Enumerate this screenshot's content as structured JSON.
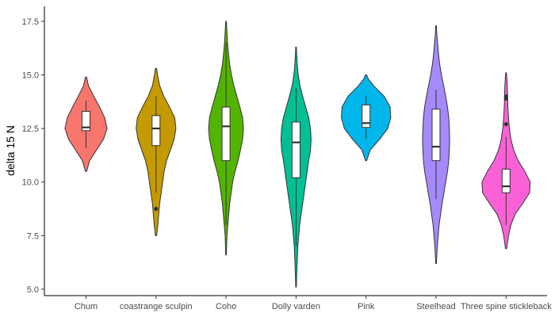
{
  "chart_data": {
    "type": "violin",
    "ylabel": "delta 15 N",
    "xlabel": "",
    "ylim": [
      4.7,
      18.2
    ],
    "yticks": [
      5.0,
      7.5,
      10.0,
      12.5,
      15.0,
      17.5
    ],
    "ytick_labels": [
      "5.0",
      "7.5",
      "10.0",
      "12.5",
      "15.0",
      "17.5"
    ],
    "grid": false,
    "legend": "none",
    "categories": [
      "Chum",
      "coastrange sculpin",
      "Coho",
      "Dolly varden",
      "Pink",
      "Steelhead",
      "Three spine stickleback"
    ],
    "series": [
      {
        "color": "#F8766D",
        "density": [
          [
            10.5,
            0.02
          ],
          [
            11.0,
            0.12
          ],
          [
            11.5,
            0.35
          ],
          [
            12.0,
            0.58
          ],
          [
            12.5,
            0.7
          ],
          [
            13.0,
            0.62
          ],
          [
            13.5,
            0.45
          ],
          [
            14.0,
            0.26
          ],
          [
            14.5,
            0.08
          ],
          [
            14.9,
            0.02
          ]
        ],
        "box": {
          "min": 11.6,
          "q1": 12.4,
          "median": 12.55,
          "q3": 13.3,
          "max": 13.8
        },
        "outliers": []
      },
      {
        "color": "#C49A00",
        "density": [
          [
            7.5,
            0.02
          ],
          [
            8.0,
            0.06
          ],
          [
            8.5,
            0.09
          ],
          [
            9.0,
            0.12
          ],
          [
            9.5,
            0.17
          ],
          [
            10.0,
            0.22
          ],
          [
            10.5,
            0.27
          ],
          [
            11.0,
            0.35
          ],
          [
            11.5,
            0.48
          ],
          [
            12.0,
            0.6
          ],
          [
            12.5,
            0.66
          ],
          [
            13.0,
            0.62
          ],
          [
            13.5,
            0.45
          ],
          [
            14.0,
            0.26
          ],
          [
            14.5,
            0.12
          ],
          [
            15.0,
            0.05
          ],
          [
            15.3,
            0.02
          ]
        ],
        "box": {
          "min": 9.5,
          "q1": 11.7,
          "median": 12.5,
          "q3": 13.1,
          "max": 14.0
        },
        "outliers": [
          8.75
        ]
      },
      {
        "color": "#53B400",
        "density": [
          [
            6.6,
            0.01
          ],
          [
            7.5,
            0.03
          ],
          [
            8.0,
            0.06
          ],
          [
            9.0,
            0.12
          ],
          [
            10.0,
            0.22
          ],
          [
            10.5,
            0.3
          ],
          [
            11.0,
            0.4
          ],
          [
            11.5,
            0.48
          ],
          [
            12.0,
            0.55
          ],
          [
            12.5,
            0.58
          ],
          [
            13.0,
            0.55
          ],
          [
            13.5,
            0.46
          ],
          [
            14.0,
            0.36
          ],
          [
            14.5,
            0.26
          ],
          [
            15.0,
            0.18
          ],
          [
            15.5,
            0.12
          ],
          [
            16.0,
            0.08
          ],
          [
            16.5,
            0.05
          ],
          [
            17.0,
            0.03
          ],
          [
            17.5,
            0.01
          ]
        ],
        "box": {
          "min": 8.0,
          "q1": 11.0,
          "median": 12.6,
          "q3": 13.5,
          "max": 16.5
        },
        "outliers": []
      },
      {
        "color": "#00C094",
        "density": [
          [
            5.1,
            0.01
          ],
          [
            6.0,
            0.03
          ],
          [
            7.0,
            0.06
          ],
          [
            8.0,
            0.12
          ],
          [
            9.0,
            0.22
          ],
          [
            10.0,
            0.32
          ],
          [
            11.0,
            0.42
          ],
          [
            11.5,
            0.48
          ],
          [
            12.0,
            0.5
          ],
          [
            12.5,
            0.48
          ],
          [
            13.0,
            0.42
          ],
          [
            13.5,
            0.32
          ],
          [
            14.0,
            0.22
          ],
          [
            14.5,
            0.13
          ],
          [
            15.0,
            0.07
          ],
          [
            15.5,
            0.04
          ],
          [
            16.0,
            0.02
          ],
          [
            16.3,
            0.01
          ]
        ],
        "box": {
          "min": 7.0,
          "q1": 10.2,
          "median": 11.85,
          "q3": 12.8,
          "max": 14.4
        },
        "outliers": []
      },
      {
        "color": "#00B6EB",
        "density": [
          [
            11.0,
            0.02
          ],
          [
            11.5,
            0.14
          ],
          [
            12.0,
            0.45
          ],
          [
            12.5,
            0.72
          ],
          [
            13.0,
            0.82
          ],
          [
            13.5,
            0.8
          ],
          [
            14.0,
            0.6
          ],
          [
            14.5,
            0.25
          ],
          [
            14.8,
            0.08
          ],
          [
            15.0,
            0.02
          ]
        ],
        "box": {
          "min": 12.0,
          "q1": 12.55,
          "median": 12.75,
          "q3": 13.6,
          "max": 14.0
        },
        "outliers": []
      },
      {
        "color": "#A58AFF",
        "density": [
          [
            6.2,
            0.01
          ],
          [
            7.0,
            0.04
          ],
          [
            8.0,
            0.1
          ],
          [
            9.0,
            0.2
          ],
          [
            10.0,
            0.32
          ],
          [
            10.5,
            0.38
          ],
          [
            11.0,
            0.42
          ],
          [
            11.5,
            0.44
          ],
          [
            12.0,
            0.45
          ],
          [
            12.5,
            0.44
          ],
          [
            13.0,
            0.42
          ],
          [
            13.5,
            0.38
          ],
          [
            14.0,
            0.32
          ],
          [
            14.5,
            0.25
          ],
          [
            15.0,
            0.18
          ],
          [
            15.5,
            0.12
          ],
          [
            16.0,
            0.08
          ],
          [
            16.5,
            0.05
          ],
          [
            17.0,
            0.02
          ],
          [
            17.3,
            0.01
          ]
        ],
        "box": {
          "min": 9.2,
          "q1": 11.0,
          "median": 11.65,
          "q3": 13.4,
          "max": 14.3
        },
        "outliers": []
      },
      {
        "color": "#FB61D7",
        "density": [
          [
            6.9,
            0.02
          ],
          [
            7.5,
            0.08
          ],
          [
            8.0,
            0.16
          ],
          [
            8.5,
            0.3
          ],
          [
            9.0,
            0.55
          ],
          [
            9.5,
            0.78
          ],
          [
            10.0,
            0.8
          ],
          [
            10.5,
            0.62
          ],
          [
            11.0,
            0.4
          ],
          [
            11.5,
            0.25
          ],
          [
            12.0,
            0.16
          ],
          [
            12.5,
            0.11
          ],
          [
            13.0,
            0.08
          ],
          [
            13.5,
            0.06
          ],
          [
            14.0,
            0.05
          ],
          [
            14.5,
            0.04
          ],
          [
            15.0,
            0.02
          ],
          [
            15.1,
            0.01
          ]
        ],
        "box": {
          "min": 8.0,
          "q1": 9.5,
          "median": 9.8,
          "q3": 10.6,
          "max": 12.1
        },
        "outliers": [
          12.7,
          13.9,
          14.0
        ]
      }
    ]
  }
}
